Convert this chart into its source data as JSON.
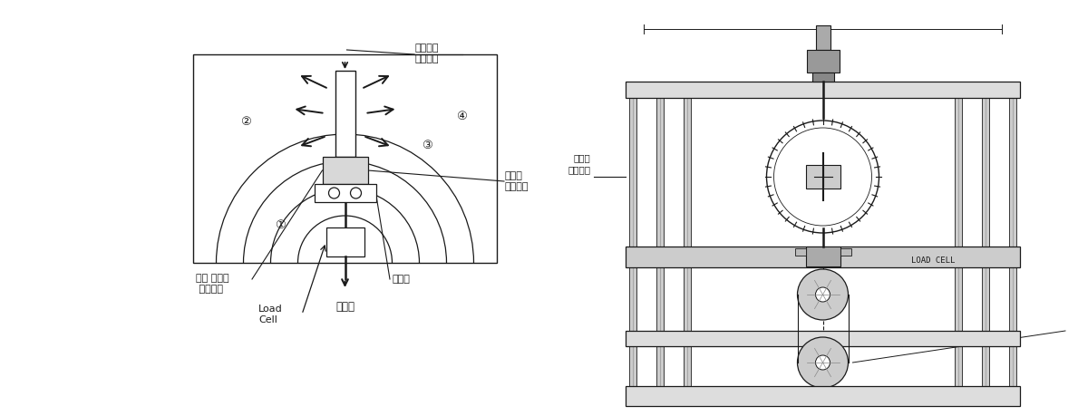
{
  "bg_color": "#ffffff",
  "line_color": "#1a1a1a",
  "gray_fill": "#c8c8c8",
  "light_gray": "#d8d8d8",
  "labels": {
    "connector_jig": "광커넥터\n부착지그",
    "test_connector": "시험용\n광커넥터",
    "servo_motor": "굴공 시험용\n 서보모터",
    "mandrel": "맨드렘",
    "load_cell_label": "Load\nCell",
    "tension": "인장력",
    "load_cell_eng": "LOAD CELL",
    "num1": "①",
    "num2": "②",
    "num3": "③",
    "num4": "④"
  }
}
